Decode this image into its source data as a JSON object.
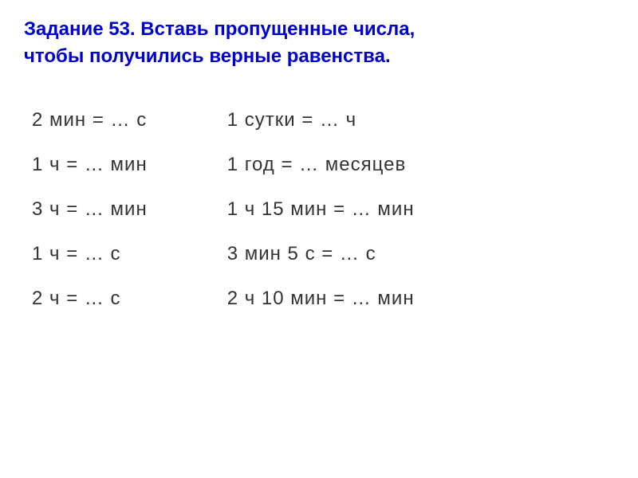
{
  "title_line1": "Задание 53. Вставь пропущенные числа,",
  "title_line2": "чтобы получились верные равенства.",
  "left_column": [
    "2 мин = … с",
    "1 ч = … мин",
    "3 ч = … мин",
    "1 ч = … с",
    "2 ч = … с"
  ],
  "right_column": [
    "1 сутки = … ч",
    "1 год = … месяцев",
    "1 ч  15 мин = … мин",
    "3 мин  5 с = … с",
    "2 ч  10 мин = … мин"
  ],
  "colors": {
    "title": "#0000cc",
    "text": "#333333",
    "background": "#ffffff"
  },
  "fonts": {
    "title_size": 24,
    "equation_size": 24,
    "title_weight": "bold"
  }
}
